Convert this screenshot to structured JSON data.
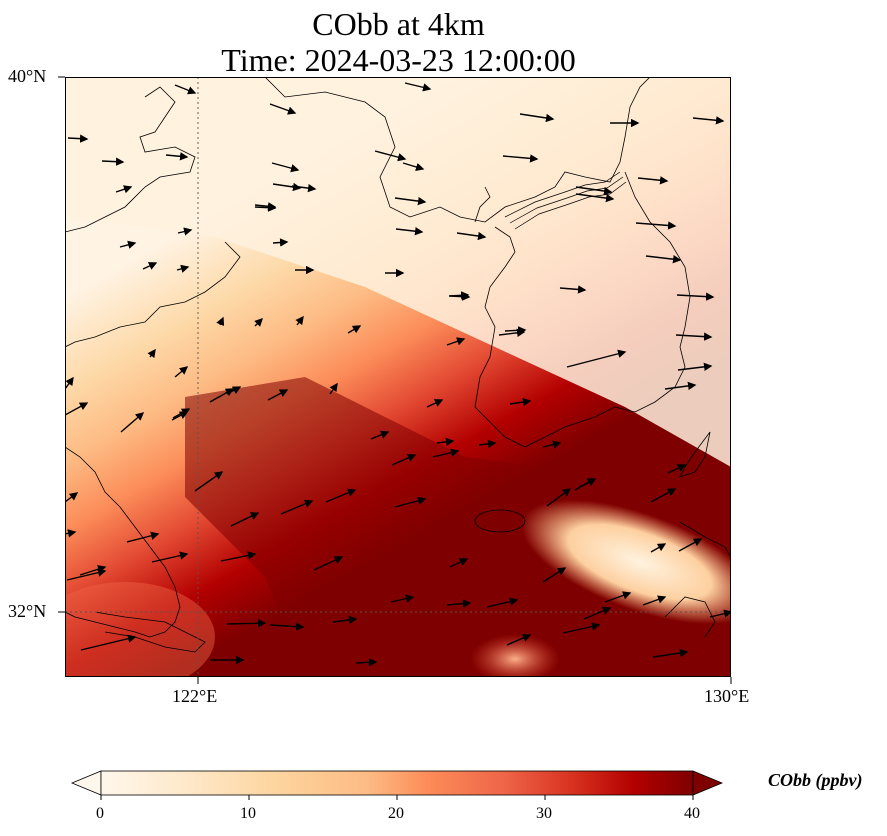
{
  "title_line1": "CObb at 4km",
  "title_line2": "Time: 2024-03-23 12:00:00",
  "map": {
    "lat_labels": [
      "40°N",
      "32°N"
    ],
    "lon_labels": [
      "122°E",
      "130°E"
    ],
    "extent": {
      "lon_min": 120,
      "lon_max": 130,
      "lat_min": 31,
      "lat_max": 40
    },
    "gridlines": {
      "lon": [
        122,
        130
      ],
      "lat": [
        32,
        40
      ],
      "style": "dotted"
    },
    "field": "CObb concentration at 4 km (shaded), wind vectors (arrows)",
    "colormap": "OrRd",
    "colors": {
      "low": "#fff7ec",
      "mid": "#fc8d59",
      "high": "#7f0000"
    }
  },
  "colorbar": {
    "label": "CObb (ppbv)",
    "ticks": [
      "0",
      "10",
      "20",
      "30",
      "40"
    ],
    "range": [
      0,
      40
    ],
    "extend": "both"
  }
}
